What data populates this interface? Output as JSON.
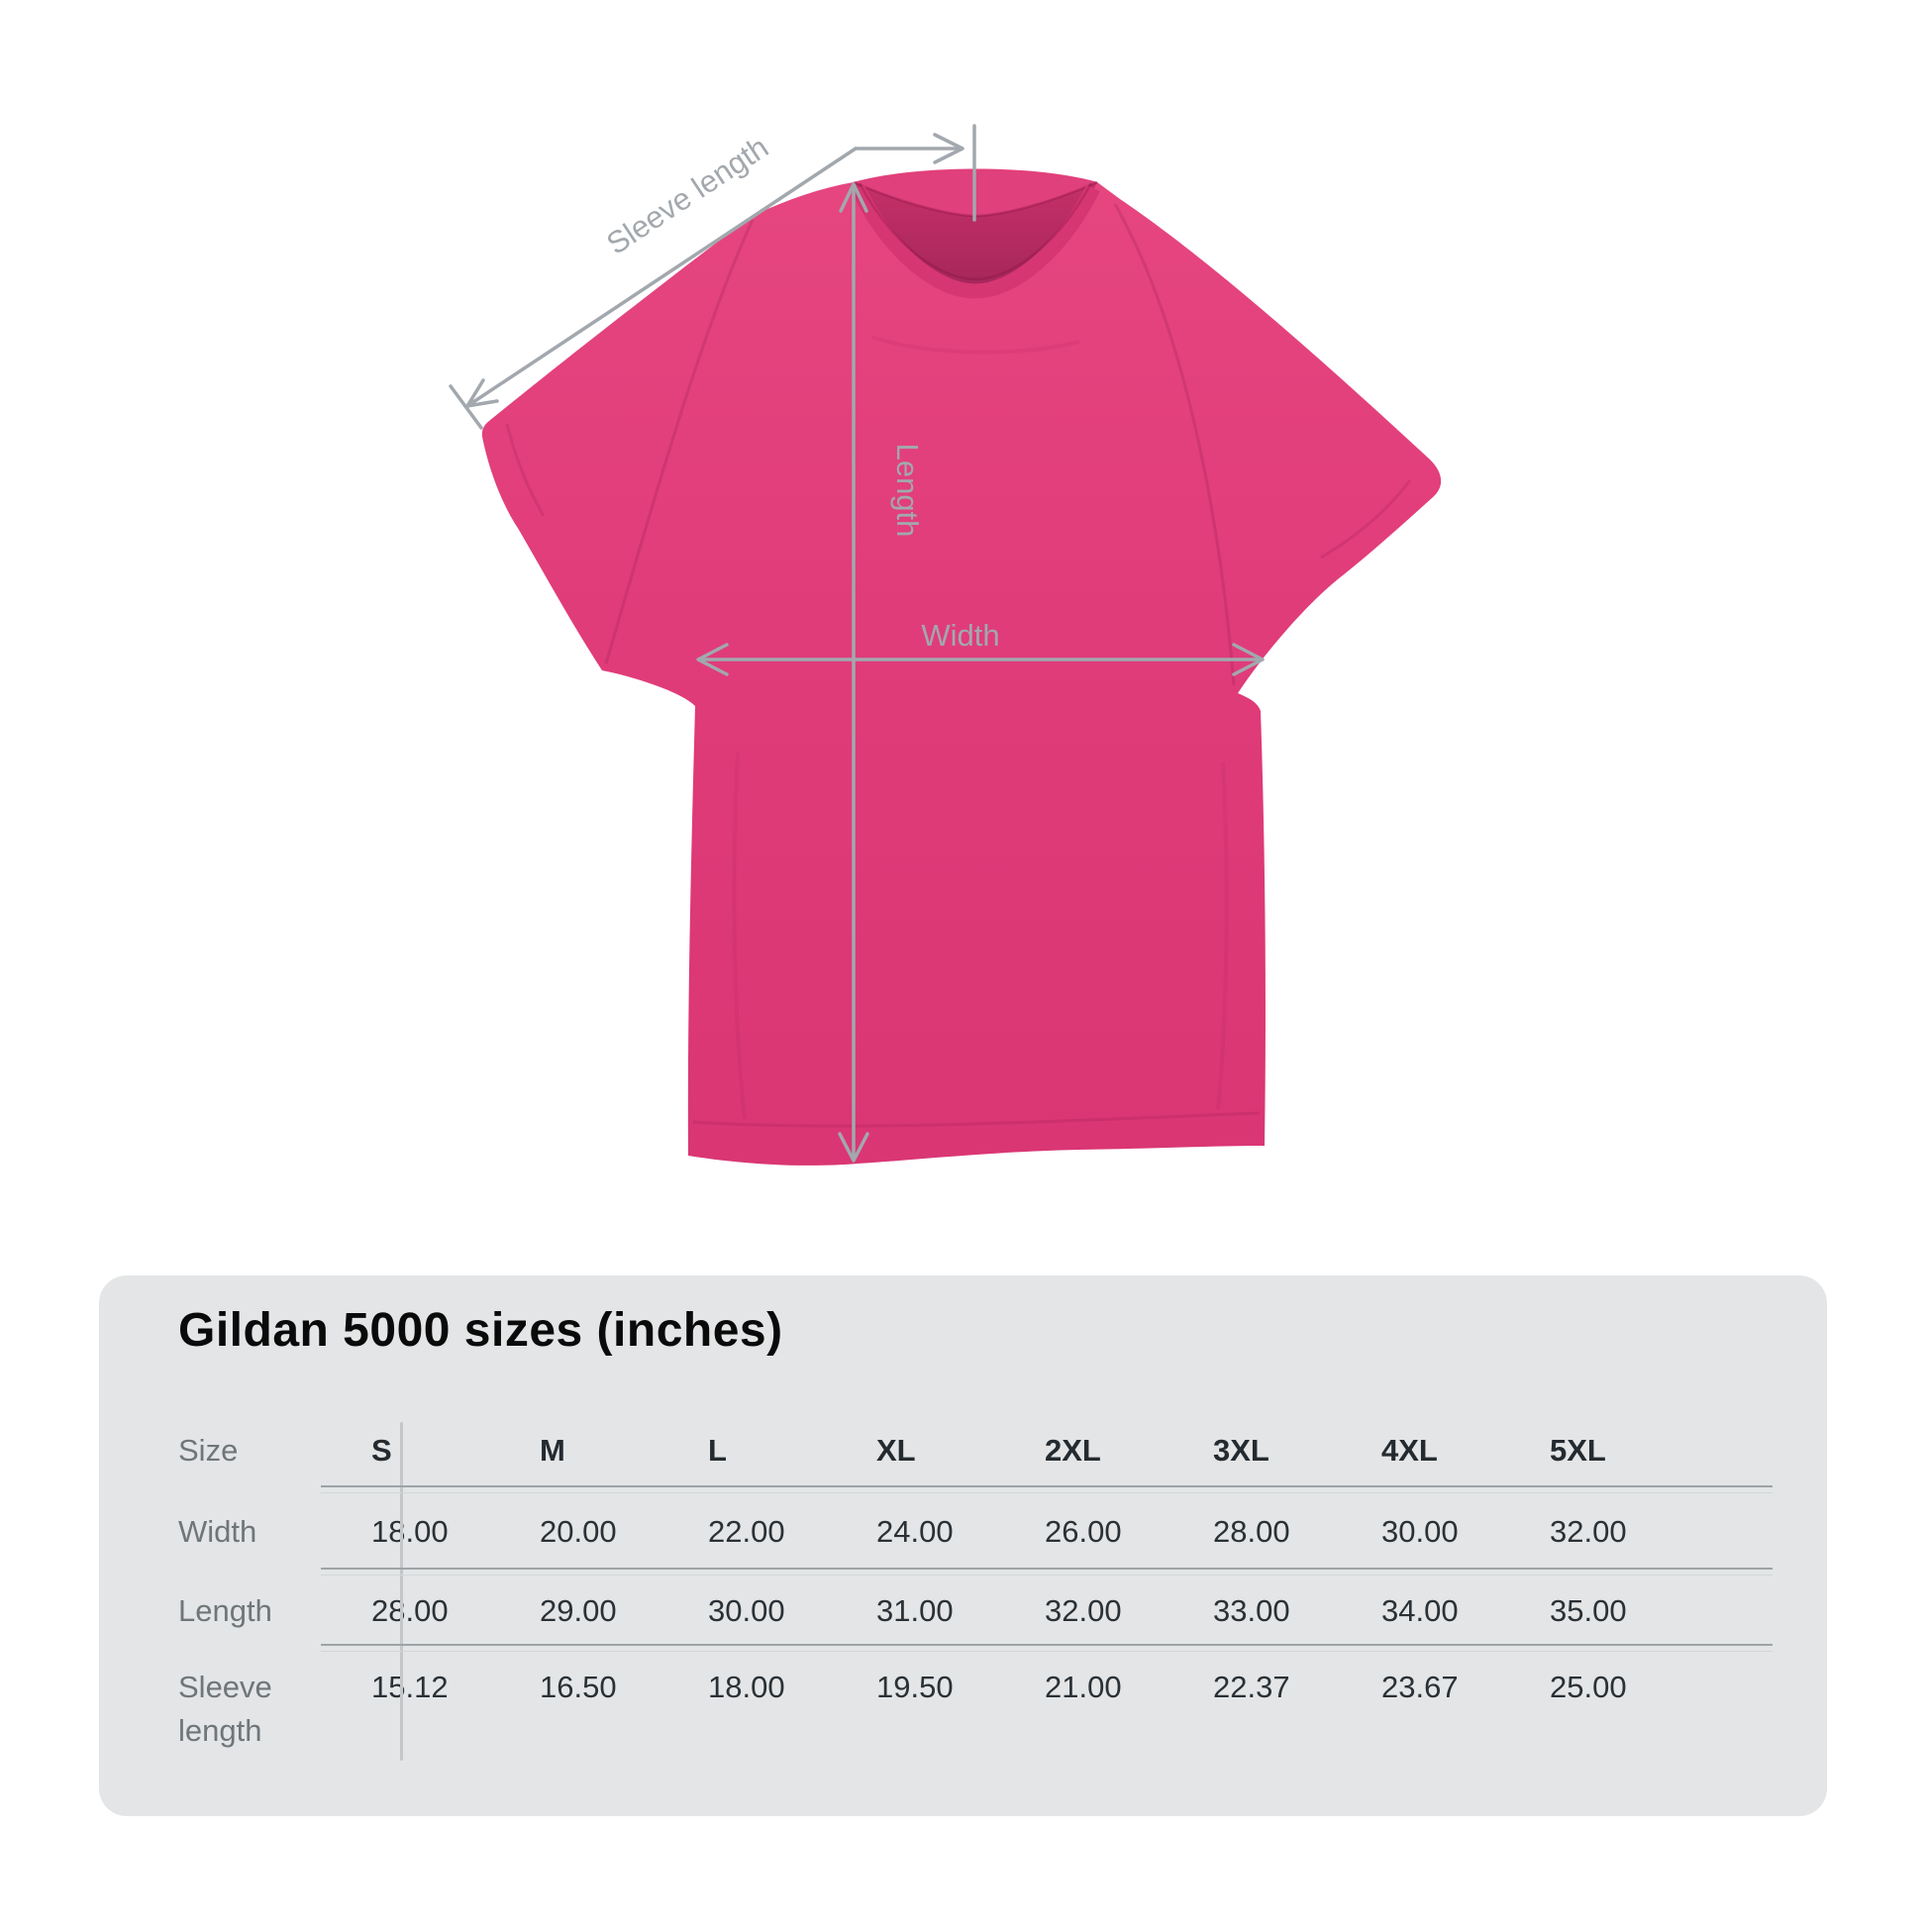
{
  "diagram": {
    "labels": {
      "sleeve_length": "Sleeve length",
      "length": "Length",
      "width": "Width"
    },
    "shirt_color": "#E03C7A",
    "measure_line_color": "#A2A8AD"
  },
  "panel": {
    "title": "Gildan 5000 sizes (inches)",
    "background_color": "#E3E5E6",
    "table": {
      "header_label": "Size",
      "columns": [
        "S",
        "M",
        "L",
        "XL",
        "2XL",
        "3XL",
        "4XL",
        "5XL"
      ],
      "rows": [
        {
          "label": "Width",
          "values": [
            "18.00",
            "20.00",
            "22.00",
            "24.00",
            "26.00",
            "28.00",
            "30.00",
            "32.00"
          ]
        },
        {
          "label": "Length",
          "values": [
            "28.00",
            "29.00",
            "30.00",
            "31.00",
            "32.00",
            "33.00",
            "34.00",
            "35.00"
          ]
        },
        {
          "label": "Sleeve length",
          "values": [
            "15.12",
            "16.50",
            "18.00",
            "19.50",
            "21.00",
            "22.37",
            "23.67",
            "25.00"
          ]
        }
      ]
    }
  },
  "chart_data": {
    "type": "table",
    "title": "Gildan 5000 sizes (inches)",
    "columns": [
      "Size",
      "S",
      "M",
      "L",
      "XL",
      "2XL",
      "3XL",
      "4XL",
      "5XL"
    ],
    "rows": [
      [
        "Width",
        18.0,
        20.0,
        22.0,
        24.0,
        26.0,
        28.0,
        30.0,
        32.0
      ],
      [
        "Length",
        28.0,
        29.0,
        30.0,
        31.0,
        32.0,
        33.0,
        34.0,
        35.0
      ],
      [
        "Sleeve length",
        15.12,
        16.5,
        18.0,
        19.5,
        21.0,
        22.37,
        23.67,
        25.0
      ]
    ]
  }
}
